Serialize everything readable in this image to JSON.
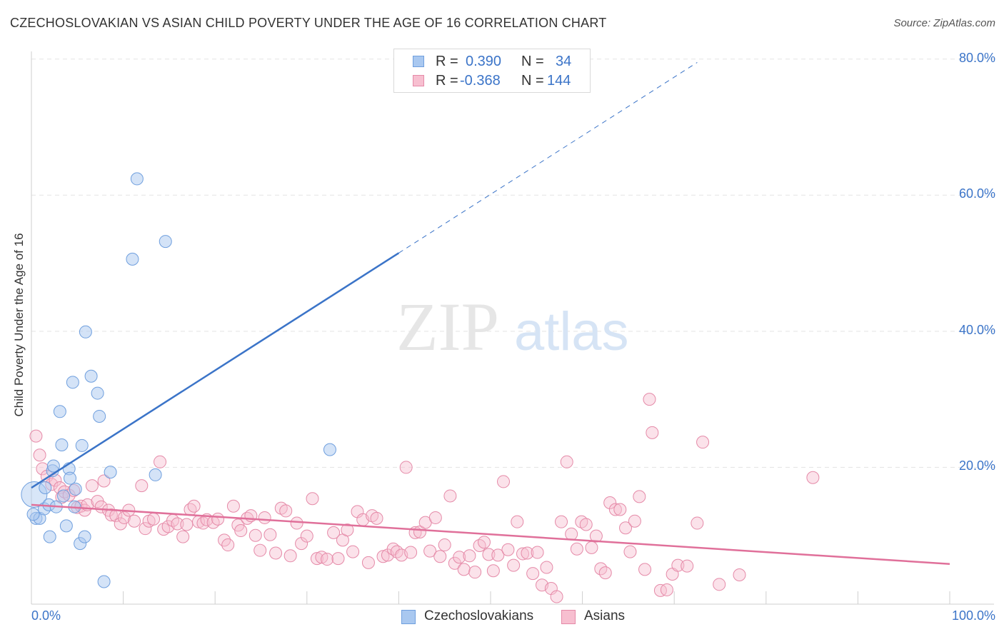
{
  "title": "CZECHOSLOVAKIAN VS ASIAN CHILD POVERTY UNDER THE AGE OF 16 CORRELATION CHART",
  "source": "Source: ZipAtlas.com",
  "watermark": {
    "zip": "ZIP",
    "atlas": "atlas"
  },
  "legend": {
    "rows": [
      {
        "r_label": "R =",
        "r_value": "0.390",
        "n_label": "N =",
        "n_value": "34",
        "color": "#a9c8f0",
        "border": "#6f9fde"
      },
      {
        "r_label": "R =",
        "r_value": "-0.368",
        "n_label": "N =",
        "n_value": "144",
        "color": "#f7bfd0",
        "border": "#e58aa8"
      }
    ]
  },
  "bottom_legend": [
    {
      "label": "Czechoslovakians",
      "color": "#a9c8f0",
      "border": "#6f9fde"
    },
    {
      "label": "Asians",
      "color": "#f7bfd0",
      "border": "#e58aa8"
    }
  ],
  "chart_data": {
    "type": "scatter",
    "title": "CZECHOSLOVAKIAN VS ASIAN CHILD POVERTY UNDER THE AGE OF 16 CORRELATION CHART",
    "xlabel": "",
    "ylabel": "Child Poverty Under the Age of 16",
    "x_tick_labels": [
      "0.0%",
      "100.0%"
    ],
    "y_tick_labels": [
      "20.0%",
      "40.0%",
      "60.0%",
      "80.0%"
    ],
    "xlim": [
      0,
      100
    ],
    "ylim": [
      0,
      82
    ],
    "grid": "horizontal dashed",
    "colors": {
      "czech": "#3b74c8",
      "asian": "#e0709a",
      "czech_fill": "#a9c8f0",
      "asian_fill": "#f7bfd0"
    },
    "series": [
      {
        "name": "Czechoslovakians",
        "trend": {
          "x0": 0,
          "y0": 17.0,
          "x1": 40,
          "y1": 51.5,
          "dashed_to_x": 72.5,
          "dashed_to_y": 79.5
        },
        "points": [
          [
            0.3,
            16.0
          ],
          [
            0.5,
            12.5
          ],
          [
            0.9,
            12.5
          ],
          [
            1.4,
            13.9
          ],
          [
            1.5,
            17.0
          ],
          [
            1.9,
            14.5
          ],
          [
            2.0,
            9.8
          ],
          [
            2.3,
            19.5
          ],
          [
            2.4,
            20.2
          ],
          [
            2.7,
            14.2
          ],
          [
            3.1,
            28.2
          ],
          [
            3.3,
            23.3
          ],
          [
            3.5,
            15.8
          ],
          [
            3.8,
            11.4
          ],
          [
            4.1,
            19.8
          ],
          [
            4.2,
            18.4
          ],
          [
            4.5,
            32.5
          ],
          [
            4.8,
            16.8
          ],
          [
            4.7,
            14.2
          ],
          [
            5.3,
            8.8
          ],
          [
            5.5,
            23.2
          ],
          [
            5.8,
            9.8
          ],
          [
            5.9,
            39.9
          ],
          [
            6.5,
            33.4
          ],
          [
            7.2,
            30.9
          ],
          [
            7.4,
            27.5
          ],
          [
            7.9,
            3.2
          ],
          [
            8.6,
            19.3
          ],
          [
            11.0,
            50.6
          ],
          [
            11.5,
            62.4
          ],
          [
            13.5,
            18.9
          ],
          [
            14.6,
            53.2
          ],
          [
            32.5,
            22.6
          ],
          [
            0.2,
            13.1
          ]
        ]
      },
      {
        "name": "Asians",
        "trend": {
          "x0": 0,
          "y0": 14.5,
          "x1": 100,
          "y1": 5.8
        },
        "points": [
          [
            0.5,
            24.6
          ],
          [
            0.9,
            21.8
          ],
          [
            1.2,
            19.8
          ],
          [
            1.7,
            18.7
          ],
          [
            2.2,
            17.5
          ],
          [
            2.6,
            18.1
          ],
          [
            3.1,
            17.0
          ],
          [
            3.3,
            15.6
          ],
          [
            3.6,
            16.4
          ],
          [
            4.1,
            15.9
          ],
          [
            4.6,
            16.6
          ],
          [
            5.0,
            14.1
          ],
          [
            5.4,
            14.3
          ],
          [
            5.8,
            13.7
          ],
          [
            6.1,
            14.5
          ],
          [
            6.6,
            17.3
          ],
          [
            7.2,
            15.0
          ],
          [
            7.6,
            14.2
          ],
          [
            7.9,
            18.0
          ],
          [
            8.4,
            13.7
          ],
          [
            8.7,
            13.0
          ],
          [
            9.2,
            12.9
          ],
          [
            9.7,
            11.7
          ],
          [
            10.1,
            12.6
          ],
          [
            10.6,
            13.7
          ],
          [
            11.2,
            12.1
          ],
          [
            12.0,
            17.3
          ],
          [
            12.4,
            11.0
          ],
          [
            12.8,
            12.1
          ],
          [
            13.3,
            12.4
          ],
          [
            14.0,
            20.8
          ],
          [
            14.4,
            10.9
          ],
          [
            14.9,
            11.3
          ],
          [
            15.4,
            12.2
          ],
          [
            15.9,
            11.7
          ],
          [
            16.5,
            9.8
          ],
          [
            16.9,
            11.6
          ],
          [
            17.3,
            13.8
          ],
          [
            17.7,
            14.3
          ],
          [
            18.2,
            12.0
          ],
          [
            18.7,
            11.8
          ],
          [
            19.1,
            12.3
          ],
          [
            19.8,
            11.9
          ],
          [
            20.3,
            12.4
          ],
          [
            21.0,
            9.3
          ],
          [
            21.4,
            8.6
          ],
          [
            22.0,
            14.3
          ],
          [
            22.5,
            11.5
          ],
          [
            22.8,
            10.7
          ],
          [
            23.5,
            12.5
          ],
          [
            23.9,
            12.9
          ],
          [
            24.4,
            10.0
          ],
          [
            24.9,
            7.8
          ],
          [
            25.4,
            12.6
          ],
          [
            26.0,
            10.1
          ],
          [
            26.6,
            7.4
          ],
          [
            27.2,
            14.0
          ],
          [
            27.7,
            13.6
          ],
          [
            28.2,
            7.0
          ],
          [
            28.9,
            11.8
          ],
          [
            29.4,
            8.8
          ],
          [
            30.0,
            9.9
          ],
          [
            30.6,
            15.4
          ],
          [
            31.1,
            6.6
          ],
          [
            31.6,
            6.8
          ],
          [
            32.2,
            6.5
          ],
          [
            32.9,
            10.4
          ],
          [
            33.4,
            6.6
          ],
          [
            33.9,
            9.3
          ],
          [
            34.4,
            10.8
          ],
          [
            35.0,
            7.6
          ],
          [
            35.5,
            13.5
          ],
          [
            36.1,
            12.3
          ],
          [
            36.7,
            6.0
          ],
          [
            37.1,
            12.9
          ],
          [
            37.6,
            12.5
          ],
          [
            38.3,
            6.9
          ],
          [
            38.8,
            7.1
          ],
          [
            39.4,
            8.0
          ],
          [
            39.8,
            7.6
          ],
          [
            40.3,
            7.1
          ],
          [
            40.8,
            20.0
          ],
          [
            41.3,
            7.5
          ],
          [
            41.8,
            10.4
          ],
          [
            42.3,
            10.5
          ],
          [
            42.9,
            11.9
          ],
          [
            43.4,
            7.7
          ],
          [
            44.0,
            12.6
          ],
          [
            44.5,
            6.9
          ],
          [
            45.0,
            8.6
          ],
          [
            45.6,
            15.8
          ],
          [
            46.1,
            5.9
          ],
          [
            46.6,
            6.8
          ],
          [
            47.1,
            5.0
          ],
          [
            47.7,
            7.0
          ],
          [
            48.3,
            4.6
          ],
          [
            48.8,
            8.5
          ],
          [
            49.3,
            9.0
          ],
          [
            49.8,
            7.2
          ],
          [
            50.3,
            4.8
          ],
          [
            50.8,
            7.1
          ],
          [
            51.4,
            17.9
          ],
          [
            51.9,
            7.9
          ],
          [
            52.5,
            5.6
          ],
          [
            52.9,
            12.0
          ],
          [
            53.5,
            7.3
          ],
          [
            54.0,
            7.4
          ],
          [
            54.6,
            4.4
          ],
          [
            55.1,
            7.5
          ],
          [
            55.6,
            2.7
          ],
          [
            56.1,
            5.3
          ],
          [
            56.6,
            2.2
          ],
          [
            57.2,
            1.0
          ],
          [
            57.7,
            12.0
          ],
          [
            58.3,
            20.8
          ],
          [
            58.8,
            10.2
          ],
          [
            59.4,
            8.0
          ],
          [
            59.9,
            12.0
          ],
          [
            60.4,
            11.6
          ],
          [
            61.0,
            8.2
          ],
          [
            61.5,
            9.9
          ],
          [
            62.0,
            5.1
          ],
          [
            62.5,
            4.5
          ],
          [
            63.0,
            14.8
          ],
          [
            63.6,
            13.8
          ],
          [
            64.1,
            13.8
          ],
          [
            64.7,
            11.1
          ],
          [
            65.2,
            7.6
          ],
          [
            65.7,
            12.1
          ],
          [
            66.2,
            15.7
          ],
          [
            66.8,
            5.0
          ],
          [
            67.3,
            30.0
          ],
          [
            67.6,
            25.1
          ],
          [
            68.5,
            1.9
          ],
          [
            69.2,
            2.0
          ],
          [
            69.8,
            4.3
          ],
          [
            70.4,
            5.6
          ],
          [
            71.4,
            5.5
          ],
          [
            72.5,
            11.8
          ],
          [
            73.1,
            23.7
          ],
          [
            74.9,
            2.8
          ],
          [
            77.1,
            4.2
          ],
          [
            85.1,
            18.5
          ]
        ]
      }
    ]
  }
}
